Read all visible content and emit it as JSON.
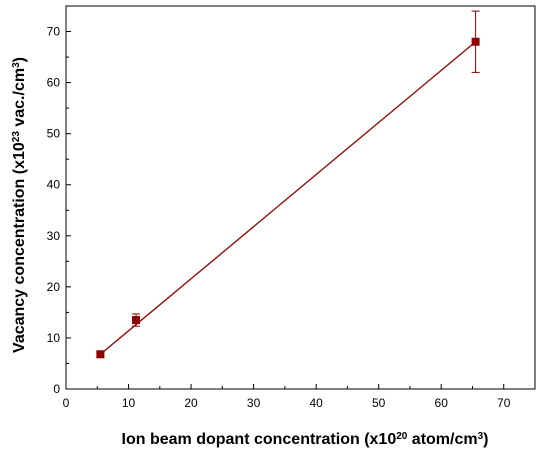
{
  "chart_data": {
    "type": "scatter",
    "xlabel": "Ion beam dopant concentration (x10",
    "xlabel_sup": "20",
    "xlabel_end": " atom/cm",
    "xlabel_sup2": "3",
    "xlabel_close": ")",
    "ylabel": "Vacancy concentration (x10",
    "ylabel_sup": "23",
    "ylabel_mid": " vac./cm",
    "ylabel_sup2": "3",
    "ylabel_close": ")",
    "xlim": [
      0,
      75
    ],
    "ylim": [
      0,
      75
    ],
    "xticks": [
      0,
      10,
      20,
      30,
      40,
      50,
      60,
      70
    ],
    "yticks": [
      0,
      10,
      20,
      30,
      40,
      50,
      60,
      70
    ],
    "grid": false,
    "series": [
      {
        "color": "#8b0000",
        "marker": "square",
        "x": [
          5.5,
          11.2,
          65.5
        ],
        "y": [
          6.8,
          13.5,
          68.0
        ],
        "yerr": [
          0.6,
          1.2,
          6.0
        ]
      }
    ],
    "fit_line": {
      "x": [
        5.5,
        65.5
      ],
      "y": [
        6.8,
        68.0
      ],
      "color": "#8b0000"
    }
  }
}
